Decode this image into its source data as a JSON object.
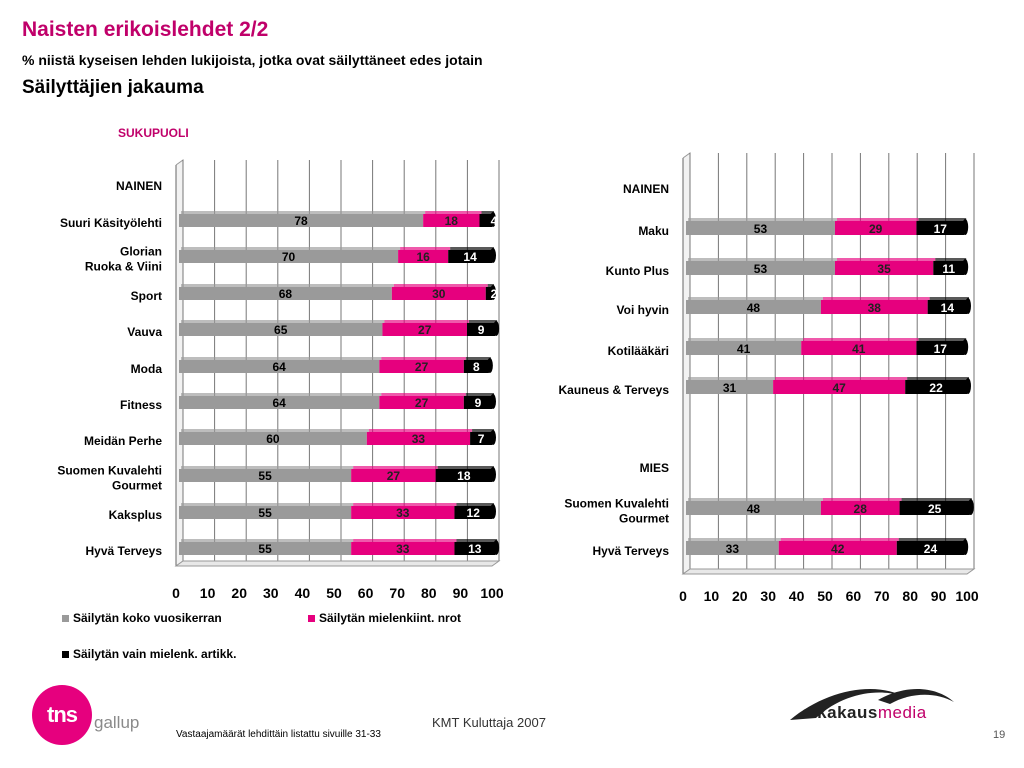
{
  "header": {
    "title": "Naisten erikoislehdet 2/2",
    "subtitle": "% niistä kyseisen lehden lukijoista, jotka ovat säilyttäneet edes jotain",
    "subtitle2": "Säilyttäjien jakauma",
    "section_label": "SUKUPUOLI"
  },
  "colors": {
    "series1": "#9a9a9a",
    "series2": "#e6007e",
    "series3": "#000000"
  },
  "chart_data": [
    {
      "type": "bar",
      "orientation": "horizontal",
      "stacked": true,
      "xlim": [
        0,
        100
      ],
      "ticks": [
        0,
        10,
        20,
        30,
        40,
        50,
        60,
        70,
        80,
        90,
        100
      ],
      "group_label": "NAINEN",
      "categories": [
        "Suuri Käsityölehti",
        "Glorian Ruoka & Viini",
        "Sport",
        "Vauva",
        "Moda",
        "Fitness",
        "Meidän Perhe",
        "Suomen Kuvalehti Gourmet",
        "Kaksplus",
        "Hyvä Terveys"
      ],
      "series": [
        {
          "name": "Säilytän koko vuosikerran",
          "values": [
            78,
            70,
            68,
            65,
            64,
            64,
            60,
            55,
            55,
            55
          ]
        },
        {
          "name": "Säilytän mielenkiint. nrot",
          "values": [
            18,
            16,
            30,
            27,
            27,
            27,
            33,
            27,
            33,
            33
          ]
        },
        {
          "name": "Säilytän vain mielenk. artikk.",
          "values": [
            4,
            14,
            2,
            9,
            8,
            9,
            7,
            18,
            12,
            13
          ]
        }
      ]
    },
    {
      "type": "bar",
      "orientation": "horizontal",
      "stacked": true,
      "xlim": [
        0,
        100
      ],
      "ticks": [
        0,
        10,
        20,
        30,
        40,
        50,
        60,
        70,
        80,
        90,
        100
      ],
      "groups": [
        {
          "label": "NAINEN",
          "categories": [
            "Maku",
            "Kunto Plus",
            "Voi hyvin",
            "Kotilääkäri",
            "Kauneus & Terveys"
          ]
        },
        {
          "label": "MIES",
          "categories": [
            "Suomen Kuvalehti Gourmet",
            "Hyvä Terveys"
          ]
        }
      ],
      "categories": [
        "Maku",
        "Kunto Plus",
        "Voi hyvin",
        "Kotilääkäri",
        "Kauneus & Terveys",
        "Suomen Kuvalehti Gourmet",
        "Hyvä Terveys"
      ],
      "series": [
        {
          "name": "Säilytän koko vuosikerran",
          "values": [
            53,
            53,
            48,
            41,
            31,
            48,
            33
          ]
        },
        {
          "name": "Säilytän mielenkiint. nrot",
          "values": [
            29,
            35,
            38,
            41,
            47,
            28,
            42
          ]
        },
        {
          "name": "Säilytän vain mielenk. artikk.",
          "values": [
            17,
            11,
            14,
            17,
            22,
            25,
            24
          ]
        }
      ]
    }
  ],
  "legend": {
    "item1": "Säilytän koko vuosikerran",
    "item2": "Säilytän mielenkiint. nrot",
    "item3": "Säilytän vain mielenk. artikk."
  },
  "footer": {
    "source_note": "Vastaajamäärät lehdittäin listattu sivuille 31-33",
    "study": "KMT Kuluttaja 2007",
    "page_number": "19",
    "logo_left_mark": "tns",
    "logo_left_word": "gallup",
    "logo_right_a": "aikakaus",
    "logo_right_b": "media"
  }
}
